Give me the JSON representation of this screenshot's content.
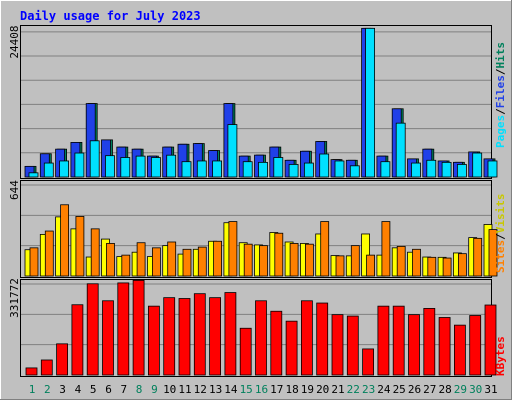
{
  "chart_data": [
    {
      "type": "bar",
      "title": "Daily usage for July 2023",
      "ylabel_parts": [
        "Pages",
        "Files",
        "Hits"
      ],
      "ymax_label": "24408",
      "ylim": [
        0,
        24408
      ],
      "categories": [
        "1",
        "2",
        "3",
        "4",
        "5",
        "6",
        "7",
        "8",
        "9",
        "10",
        "11",
        "12",
        "13",
        "14",
        "15",
        "16",
        "17",
        "18",
        "19",
        "20",
        "21",
        "22",
        "23",
        "24",
        "25",
        "26",
        "27",
        "28",
        "29",
        "30",
        "31"
      ],
      "weekend_days": [
        1,
        2,
        8,
        9,
        15,
        16,
        22,
        23,
        29,
        30
      ],
      "series": [
        {
          "name": "Hits",
          "color": "#00805c",
          "values": [
            1730,
            3780,
            4530,
            5630,
            11950,
            6040,
            4870,
            4530,
            3400,
            4870,
            5330,
            5440,
            4300,
            11950,
            3400,
            3560,
            4870,
            2720,
            4190,
            5780,
            2830,
            2720,
            24190,
            3400,
            11100,
            2950,
            4530,
            2610,
            2390,
            4080,
            2950
          ]
        },
        {
          "name": "Files",
          "color": "#2040e8",
          "values": [
            1730,
            3780,
            4530,
            5630,
            11950,
            6040,
            4870,
            4530,
            3400,
            4870,
            5330,
            5440,
            4300,
            11950,
            3400,
            3560,
            4870,
            2720,
            4190,
            5780,
            2830,
            2720,
            24190,
            3400,
            11100,
            2950,
            4530,
            2610,
            2390,
            4080,
            2950
          ]
        },
        {
          "name": "Pages",
          "color": "#00e0ff",
          "values": [
            680,
            2270,
            2610,
            3900,
            5890,
            3470,
            3170,
            3400,
            3170,
            3550,
            2490,
            2610,
            2610,
            8530,
            2490,
            2380,
            3170,
            2040,
            2270,
            3740,
            2610,
            1820,
            24190,
            2490,
            8760,
            2270,
            2720,
            2380,
            2040,
            3900,
            2610
          ]
        }
      ]
    },
    {
      "type": "bar",
      "ylabel_parts": [
        "Sites",
        "Visits"
      ],
      "ymax_label": "644",
      "ylim": [
        0,
        644
      ],
      "categories": [
        "1",
        "2",
        "3",
        "4",
        "5",
        "6",
        "7",
        "8",
        "9",
        "10",
        "11",
        "12",
        "13",
        "14",
        "15",
        "16",
        "17",
        "18",
        "19",
        "20",
        "21",
        "22",
        "23",
        "24",
        "25",
        "26",
        "27",
        "28",
        "29",
        "30",
        "31"
      ],
      "series": [
        {
          "name": "Visits",
          "color": "#ffff00",
          "values": [
            180,
            285,
            405,
            323,
            130,
            253,
            133,
            163,
            133,
            208,
            150,
            183,
            238,
            365,
            228,
            213,
            298,
            233,
            223,
            288,
            140,
            138,
            288,
            143,
            193,
            163,
            130,
            128,
            158,
            263,
            353
          ]
        },
        {
          "name": "Sites",
          "color": "#ff8000",
          "values": [
            193,
            308,
            488,
            408,
            323,
            223,
            143,
            228,
            193,
            233,
            183,
            198,
            238,
            373,
            218,
            208,
            293,
            223,
            218,
            373,
            138,
            208,
            143,
            373,
            203,
            183,
            128,
            123,
            153,
            258,
            318
          ]
        }
      ]
    },
    {
      "type": "bar",
      "ylabel": "KBytes",
      "ymax_label": "331772",
      "ylim": [
        0,
        331772
      ],
      "categories": [
        "1",
        "2",
        "3",
        "4",
        "5",
        "6",
        "7",
        "8",
        "9",
        "10",
        "11",
        "12",
        "13",
        "14",
        "15",
        "16",
        "17",
        "18",
        "19",
        "20",
        "21",
        "22",
        "23",
        "24",
        "25",
        "26",
        "27",
        "28",
        "29",
        "30",
        "31"
      ],
      "series": [
        {
          "name": "KBytes",
          "color": "#ff0000",
          "values": [
            25000,
            53000,
            110000,
            248000,
            322000,
            262000,
            325000,
            334000,
            243000,
            273000,
            270000,
            287000,
            273000,
            291000,
            165000,
            262000,
            225000,
            190000,
            262000,
            254000,
            213000,
            208000,
            92000,
            243000,
            243000,
            213000,
            235000,
            203000,
            176000,
            210000,
            247000
          ]
        }
      ]
    }
  ],
  "colors": {
    "background": "#c0c0c0",
    "title": "#0000ff",
    "weekend_label": "#00805c",
    "weekday_label": "#000000"
  }
}
